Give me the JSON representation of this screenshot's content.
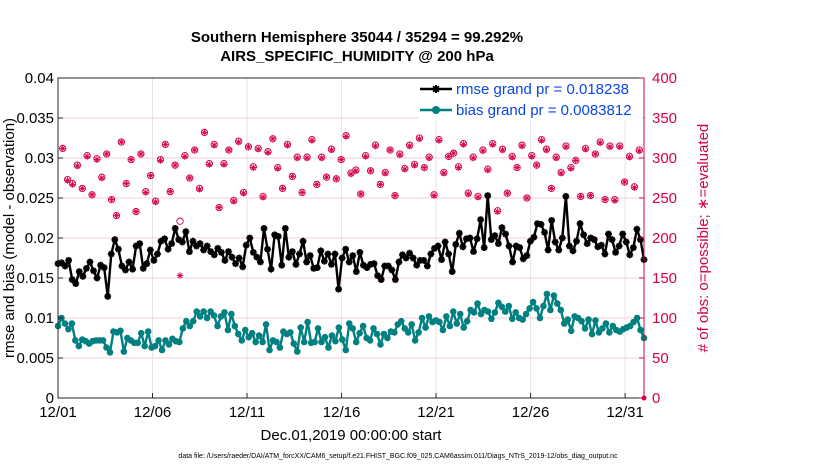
{
  "chart_data": {
    "type": "line",
    "title": "Southern Hemisphere 35044 / 35294 = 99.292%",
    "subtitle": "AIRS_SPECIFIC_HUMIDITY @ 200 hPa",
    "xlabel": "Dec.01,2019 00:00:00 start",
    "ylabel": "rmse and bias (model - observation)",
    "ylabel_right": "# of obs: o=possible; ∗=evaluated",
    "footer": "data file: /Users/raeder/DAI/ATM_forcXX/CAM6_setup/f.e21.FHIST_BGC.f09_025.CAM6assim.011/Diags_NTrS_2019-12/obs_diag_output.nc",
    "xlim": [
      0,
      31
    ],
    "ylim": [
      0,
      0.04
    ],
    "ylim_right": [
      0,
      400
    ],
    "x_ticks": [
      0,
      5,
      10,
      15,
      20,
      25,
      30
    ],
    "x_tick_labels": [
      "12/01",
      "12/06",
      "12/11",
      "12/16",
      "12/21",
      "12/26",
      "12/31"
    ],
    "y_ticks": [
      0,
      0.005,
      0.01,
      0.015,
      0.02,
      0.025,
      0.03,
      0.035,
      0.04
    ],
    "y_tick_labels": [
      "0",
      "0.005",
      "0.01",
      "0.015",
      "0.02",
      "0.025",
      "0.03",
      "0.035",
      "0.04"
    ],
    "y_right_ticks": [
      0,
      50,
      100,
      150,
      200,
      250,
      300,
      350,
      400
    ],
    "y_right_tick_labels": [
      "0",
      "50",
      "100",
      "150",
      "200",
      "250",
      "300",
      "350",
      "400"
    ],
    "grid": true,
    "legend_position": "top-right",
    "colors": {
      "rmse": "#000000",
      "bias": "#008080",
      "obs": "#d6004a",
      "legend_text": "#0a47e0"
    },
    "series": [
      {
        "name": "rmse grand pr = 0.018238",
        "axis": "left",
        "color": "#000000",
        "values": [
          0.0168,
          0.0169,
          0.0165,
          0.0172,
          0.0148,
          0.0143,
          0.0158,
          0.0152,
          0.0162,
          0.017,
          0.0159,
          0.015,
          0.0166,
          0.0163,
          0.0127,
          0.018,
          0.0198,
          0.0186,
          0.0165,
          0.016,
          0.017,
          0.0161,
          0.019,
          0.0193,
          0.0162,
          0.0168,
          0.0185,
          0.0172,
          0.018,
          0.0196,
          0.0199,
          0.0186,
          0.0193,
          0.0212,
          0.0198,
          0.0195,
          0.0208,
          0.0183,
          0.0196,
          0.019,
          0.0193,
          0.0185,
          0.019,
          0.0183,
          0.0179,
          0.0187,
          0.0182,
          0.0172,
          0.0183,
          0.0176,
          0.0168,
          0.0175,
          0.0164,
          0.0191,
          0.02,
          0.0182,
          0.0176,
          0.017,
          0.0212,
          0.0186,
          0.0161,
          0.0204,
          0.0202,
          0.0166,
          0.0212,
          0.0176,
          0.0183,
          0.0167,
          0.018,
          0.0196,
          0.017,
          0.0178,
          0.0162,
          0.0163,
          0.0184,
          0.0171,
          0.018,
          0.0167,
          0.018,
          0.0136,
          0.0175,
          0.0186,
          0.017,
          0.0178,
          0.0158,
          0.0182,
          0.0166,
          0.0163,
          0.0167,
          0.0168,
          0.0153,
          0.0148,
          0.0165,
          0.0165,
          0.016,
          0.0148,
          0.017,
          0.0179,
          0.0175,
          0.0181,
          0.0175,
          0.0166,
          0.0172,
          0.0172,
          0.0165,
          0.018,
          0.0187,
          0.019,
          0.0173,
          0.0195,
          0.018,
          0.0158,
          0.0192,
          0.0206,
          0.0189,
          0.0199,
          0.02,
          0.0183,
          0.0199,
          0.0223,
          0.0188,
          0.0253,
          0.0198,
          0.0203,
          0.0193,
          0.0213,
          0.0205,
          0.019,
          0.017,
          0.019,
          0.0188,
          0.0174,
          0.0178,
          0.0196,
          0.0201,
          0.0218,
          0.0217,
          0.0207,
          0.0185,
          0.0222,
          0.0195,
          0.0185,
          0.02,
          0.0252,
          0.019,
          0.0184,
          0.0196,
          0.0218,
          0.0204,
          0.0193,
          0.02,
          0.0198,
          0.0189,
          0.0191,
          0.018,
          0.0205,
          0.0198,
          0.0182,
          0.019,
          0.0205,
          0.0195,
          0.0179,
          0.0188,
          0.0211,
          0.0198,
          0.0173
        ]
      },
      {
        "name": "bias grand pr = 0.0083812",
        "axis": "left",
        "color": "#008080",
        "values": [
          0.009,
          0.01,
          0.0093,
          0.0086,
          0.0093,
          0.0072,
          0.0065,
          0.0073,
          0.0071,
          0.0068,
          0.0071,
          0.0072,
          0.0072,
          0.0072,
          0.0063,
          0.0057,
          0.0083,
          0.0082,
          0.0084,
          0.0058,
          0.0075,
          0.0072,
          0.0069,
          0.0069,
          0.0081,
          0.0065,
          0.0083,
          0.0063,
          0.0065,
          0.0072,
          0.006,
          0.0072,
          0.0067,
          0.0074,
          0.0071,
          0.007,
          0.0087,
          0.0096,
          0.009,
          0.0096,
          0.0108,
          0.0102,
          0.0108,
          0.01,
          0.0108,
          0.0103,
          0.009,
          0.0102,
          0.0107,
          0.0085,
          0.0105,
          0.009,
          0.008,
          0.0072,
          0.0085,
          0.0076,
          0.0081,
          0.007,
          0.0078,
          0.007,
          0.0092,
          0.006,
          0.0072,
          0.007,
          0.0063,
          0.0083,
          0.008,
          0.0082,
          0.0068,
          0.0058,
          0.0088,
          0.007,
          0.0095,
          0.0069,
          0.007,
          0.0087,
          0.007,
          0.0076,
          0.0063,
          0.0078,
          0.0071,
          0.0088,
          0.0073,
          0.006,
          0.0093,
          0.0087,
          0.007,
          0.0081,
          0.009,
          0.0075,
          0.0072,
          0.0087,
          0.008,
          0.0067,
          0.008,
          0.0075,
          0.0083,
          0.0082,
          0.0092,
          0.0096,
          0.0087,
          0.0082,
          0.0092,
          0.0072,
          0.0082,
          0.01,
          0.0088,
          0.0102,
          0.0095,
          0.0097,
          0.0095,
          0.0085,
          0.0102,
          0.009,
          0.0108,
          0.0093,
          0.0105,
          0.0088,
          0.0096,
          0.011,
          0.0107,
          0.0118,
          0.0105,
          0.011,
          0.0108,
          0.0099,
          0.0107,
          0.0119,
          0.0114,
          0.0108,
          0.0115,
          0.0099,
          0.0107,
          0.01,
          0.0098,
          0.0105,
          0.0112,
          0.012,
          0.0112,
          0.01,
          0.0115,
          0.013,
          0.011,
          0.0128,
          0.0118,
          0.011,
          0.0093,
          0.0098,
          0.0084,
          0.0102,
          0.01,
          0.0096,
          0.0087,
          0.0098,
          0.008,
          0.0097,
          0.0082,
          0.0087,
          0.0093,
          0.0082,
          0.009,
          0.0085,
          0.0083,
          0.0086,
          0.0088,
          0.009,
          0.0095,
          0.01,
          0.0085,
          0.0075
        ]
      },
      {
        "name": "obs possible",
        "axis": "right",
        "color": "#d6004a",
        "marker": "o",
        "values": [
          312,
          273,
          268,
          291,
          262,
          303,
          254,
          299,
          276,
          305,
          248,
          228,
          320,
          268,
          298,
          233,
          305,
          258,
          278,
          246,
          298,
          317,
          258,
          291,
          221,
          303,
          275,
          310,
          262,
          332,
          293,
          317,
          238,
          293,
          310,
          247,
          321,
          257,
          314,
          289,
          312,
          252,
          308,
          324,
          288,
          262,
          317,
          277,
          301,
          257,
          301,
          323,
          267,
          301,
          276,
          311,
          274,
          298,
          328,
          281,
          285,
          255,
          303,
          284,
          316,
          267,
          282,
          310,
          253,
          305,
          287,
          316,
          292,
          325,
          288,
          301,
          254,
          323,
          282,
          302,
          306,
          289,
          318,
          256,
          301,
          252,
          310,
          286,
          318,
          234,
          311,
          256,
          302,
          288,
          316,
          250,
          303,
          291,
          323,
          311,
          262,
          301,
          282,
          315,
          288,
          297,
          252,
          312,
          253,
          305,
          320,
          248,
          315,
          248,
          315,
          270,
          302,
          264,
          310
        ]
      },
      {
        "name": "obs evaluated",
        "axis": "right",
        "color": "#d6004a",
        "marker": "*",
        "values": [
          312,
          272,
          267,
          290,
          262,
          302,
          254,
          298,
          275,
          305,
          248,
          228,
          320,
          268,
          298,
          233,
          305,
          257,
          278,
          245,
          297,
          317,
          258,
          291,
          153,
          302,
          275,
          310,
          261,
          332,
          292,
          316,
          238,
          292,
          310,
          246,
          320,
          256,
          314,
          288,
          311,
          251,
          307,
          324,
          287,
          262,
          316,
          277,
          300,
          257,
          300,
          322,
          267,
          300,
          276,
          310,
          274,
          298,
          327,
          280,
          284,
          255,
          302,
          284,
          315,
          267,
          281,
          310,
          253,
          304,
          286,
          315,
          291,
          324,
          288,
          300,
          253,
          322,
          281,
          302,
          306,
          288,
          317,
          255,
          300,
          251,
          309,
          285,
          317,
          233,
          310,
          256,
          301,
          288,
          315,
          250,
          302,
          291,
          322,
          310,
          262,
          300,
          281,
          314,
          287,
          297,
          252,
          311,
          253,
          305,
          319,
          248,
          314,
          247,
          314,
          270,
          301,
          263,
          309
        ]
      }
    ]
  }
}
